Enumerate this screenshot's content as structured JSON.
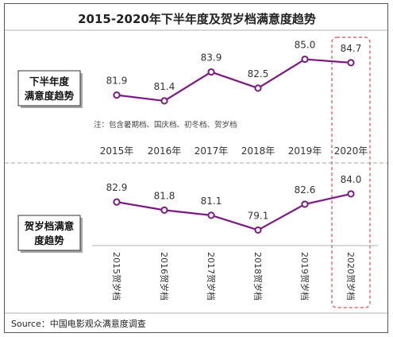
{
  "title": "2015-2020年下半年度及贺岁档满意度趋势",
  "colors": {
    "line": "#7b1a83",
    "highlight": "#e8474c",
    "divider": "#888888"
  },
  "chart_data": [
    {
      "type": "line",
      "label": [
        "下半年度",
        "满意度趋势"
      ],
      "categories": [
        "2015年",
        "2016年",
        "2017年",
        "2018年",
        "2019年",
        "2020年"
      ],
      "values": [
        81.9,
        81.4,
        83.9,
        82.5,
        85.0,
        84.7
      ],
      "ylim": [
        80.5,
        86
      ],
      "note": "注：包含暑期档、国庆档、初冬档、贺岁档"
    },
    {
      "type": "line",
      "label": [
        "贺岁档满意",
        "度趋势"
      ],
      "categories": [
        "2015贺岁档",
        "2016贺岁档",
        "2017贺岁档",
        "2018贺岁档",
        "2019贺岁档",
        "2020贺岁档"
      ],
      "values": [
        82.9,
        81.8,
        81.1,
        79.1,
        82.6,
        84.0
      ],
      "ylim": [
        78.5,
        85.5
      ]
    }
  ],
  "highlight_category": "2020",
  "source": "Source：中国电影观众满意度调查"
}
